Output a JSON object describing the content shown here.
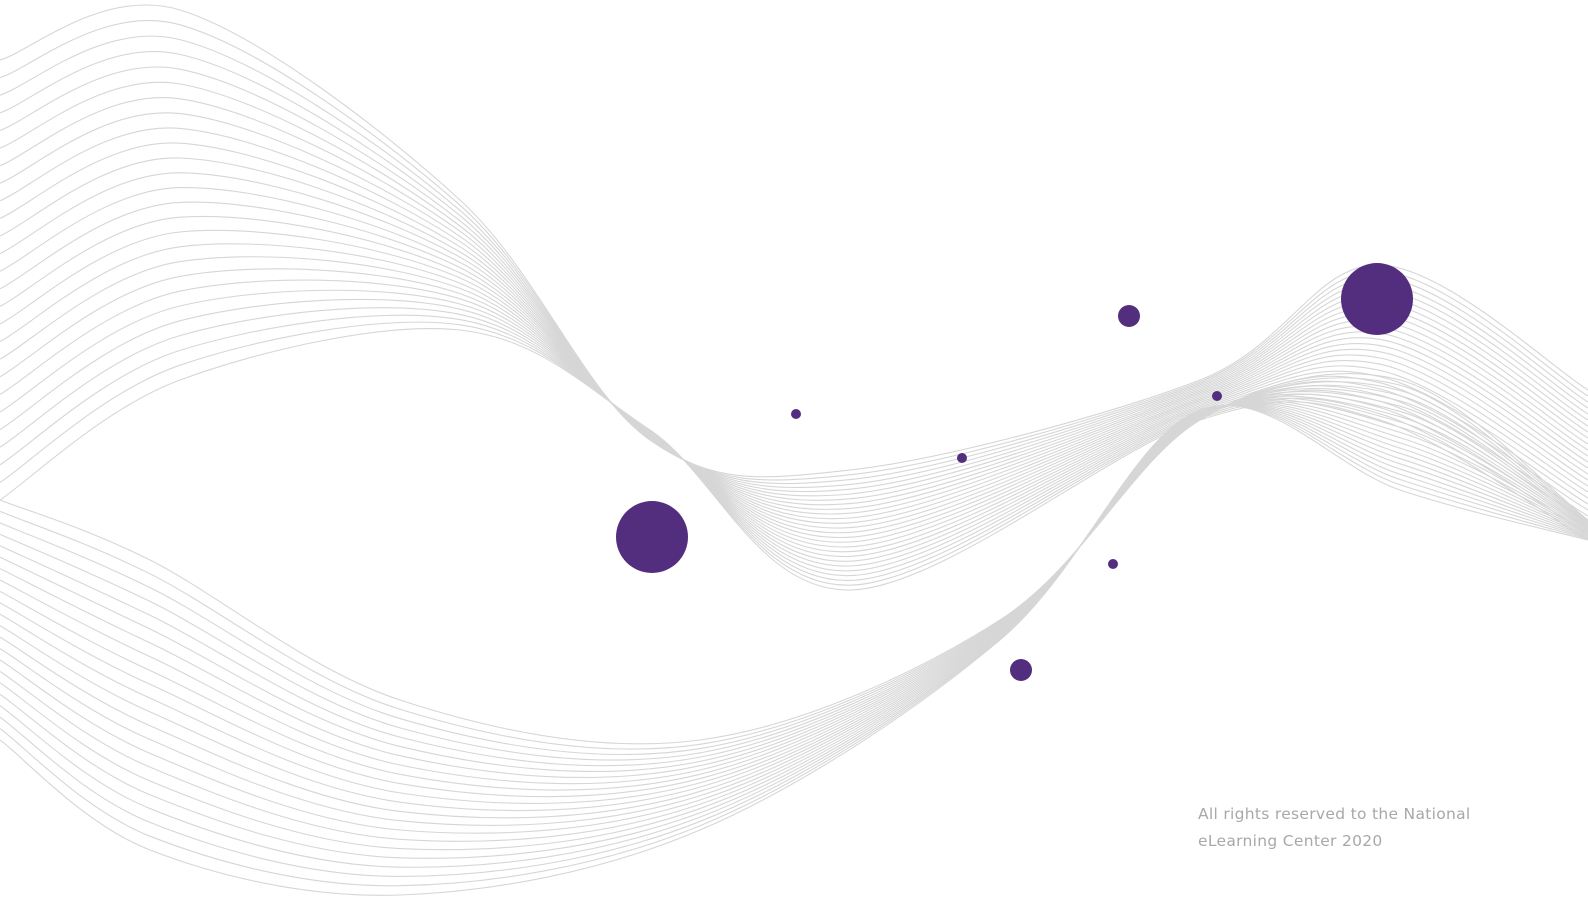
{
  "footer": {
    "lines": [
      "All rights reserved to the National",
      "eLearning Center 2020"
    ]
  }
}
